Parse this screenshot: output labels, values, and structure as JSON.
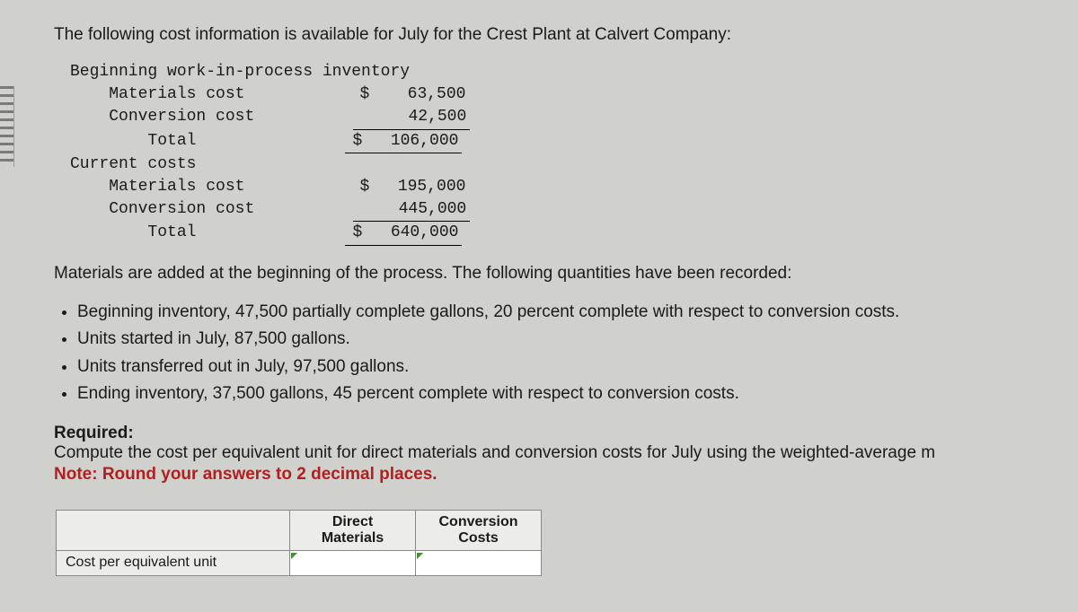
{
  "intro": "The following cost information is available for July for the Crest Plant at Calvert Company:",
  "costs": {
    "wip_header": "Beginning work-in-process inventory",
    "materials_label": "Materials cost",
    "conversion_label": "Conversion cost",
    "total_label": "Total",
    "current_header": "Current costs",
    "wip_materials": "63,500",
    "wip_conversion": "42,500",
    "wip_total": "106,000",
    "cur_materials": "195,000",
    "cur_conversion": "445,000",
    "cur_total": "640,000"
  },
  "materials_note": "Materials are added at the beginning of the process. The following quantities have been recorded:",
  "bullets": [
    "Beginning inventory, 47,500 partially complete gallons, 20 percent complete with respect to conversion costs.",
    "Units started in July, 87,500 gallons.",
    "Units transferred out in July, 97,500 gallons.",
    "Ending inventory, 37,500 gallons, 45 percent complete with respect to conversion costs."
  ],
  "required_label": "Required:",
  "required_text": "Compute the cost per equivalent unit for direct materials and conversion costs for July using the weighted-average m",
  "note_text": "Note: Round your answers to 2 decimal places.",
  "table": {
    "col1": "Direct Materials",
    "col2": "Conversion Costs",
    "row1": "Cost per equivalent unit"
  }
}
